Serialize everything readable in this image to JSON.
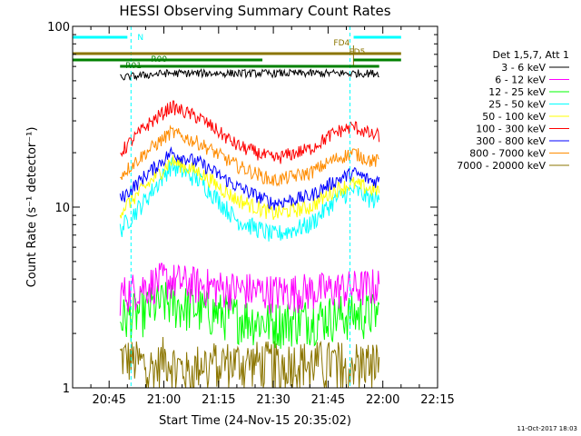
{
  "chart_data": {
    "type": "line",
    "title": "HESSI Observing Summary Count Rates",
    "xlabel": "Start Time (24-Nov-15 20:35:02)",
    "ylabel": "Count Rate (s⁻¹ detector⁻¹)",
    "y_scale": "log",
    "ylim": [
      1,
      100
    ],
    "xlim": [
      "20:35",
      "22:15"
    ],
    "x_ticks": [
      "20:45",
      "21:00",
      "21:15",
      "21:30",
      "21:45",
      "22:00",
      "22:15"
    ],
    "y_ticks": [
      "1",
      "10",
      "100"
    ],
    "grid": false,
    "legend_title": "Det 1,5,7, Att 1",
    "legend_placement": "right",
    "timestamp": "11-Oct-2017 18:03",
    "data_start": "20:48",
    "data_end": "21:59",
    "series": [
      {
        "name": "3 - 6 keV",
        "color": "#000000",
        "times": [
          "20:48",
          "21:00",
          "21:15",
          "21:30",
          "21:45",
          "21:59"
        ],
        "values": [
          52,
          55,
          55,
          55,
          55,
          55
        ]
      },
      {
        "name": "6 - 12 keV",
        "color": "#ff00ff",
        "times": [
          "20:48",
          "21:00",
          "21:15",
          "21:30",
          "21:45",
          "21:59"
        ],
        "values": [
          3.3,
          4.0,
          3.6,
          3.4,
          3.5,
          3.7
        ]
      },
      {
        "name": "12 - 25 keV",
        "color": "#00ff00",
        "times": [
          "20:48",
          "21:00",
          "21:15",
          "21:30",
          "21:45",
          "21:59"
        ],
        "values": [
          2.4,
          3.0,
          2.6,
          2.3,
          2.5,
          2.6
        ]
      },
      {
        "name": "25 - 50 keV",
        "color": "#00ffff",
        "times": [
          "20:48",
          "20:55",
          "21:02",
          "21:10",
          "21:20",
          "21:30",
          "21:40",
          "21:47",
          "21:52",
          "21:57"
        ],
        "values": [
          7.5,
          11,
          17,
          14,
          8.5,
          7,
          8,
          11,
          12.5,
          11
        ]
      },
      {
        "name": "50 - 100 keV",
        "color": "#ffff00",
        "times": [
          "20:48",
          "20:55",
          "21:02",
          "21:10",
          "21:20",
          "21:30",
          "21:40",
          "21:47",
          "21:52",
          "21:57"
        ],
        "values": [
          9.5,
          13,
          18,
          15.5,
          11,
          9.2,
          10,
          12.5,
          13.5,
          12.5
        ]
      },
      {
        "name": "100 - 300 keV",
        "color": "#ff0000",
        "times": [
          "20:48",
          "20:55",
          "21:02",
          "21:10",
          "21:20",
          "21:30",
          "21:40",
          "21:47",
          "21:52",
          "21:57"
        ],
        "values": [
          20,
          28,
          36,
          31,
          22,
          18.5,
          21,
          26,
          28,
          25
        ]
      },
      {
        "name": "300 - 800 keV",
        "color": "#0000ff",
        "times": [
          "20:48",
          "20:55",
          "21:02",
          "21:10",
          "21:20",
          "21:30",
          "21:40",
          "21:47",
          "21:52",
          "21:57"
        ],
        "values": [
          11,
          15,
          20,
          17.5,
          13,
          10.5,
          11.5,
          14,
          15.5,
          14
        ]
      },
      {
        "name": "800 - 7000 keV",
        "color": "#ff8c00",
        "times": [
          "20:48",
          "20:55",
          "21:02",
          "21:10",
          "21:20",
          "21:30",
          "21:40",
          "21:47",
          "21:52",
          "21:57"
        ],
        "values": [
          15,
          20,
          26,
          22.5,
          17,
          14,
          15.5,
          18.5,
          20,
          18
        ]
      },
      {
        "name": "7000 - 20000 keV",
        "color": "#8b7500",
        "times": [
          "20:48",
          "20:58",
          "21:00",
          "21:07",
          "21:10",
          "21:59"
        ],
        "values": [
          1.5,
          1.3,
          1.5,
          1.2,
          1.4,
          1.4
        ]
      }
    ],
    "annotations": [
      {
        "label": "N",
        "color": "#00ffff",
        "times": [
          "20:51",
          "21:51"
        ]
      },
      {
        "label": "FD4",
        "color": "#8b7500",
        "times": [
          "21:45"
        ]
      },
      {
        "label": "FD5",
        "color": "#8b7500",
        "times": [
          "21:50"
        ]
      },
      {
        "label": "R00",
        "color": "#008000",
        "times": [
          "20:55"
        ]
      },
      {
        "label": "R01",
        "color": "#008000",
        "times": [
          "20:49"
        ]
      }
    ]
  }
}
